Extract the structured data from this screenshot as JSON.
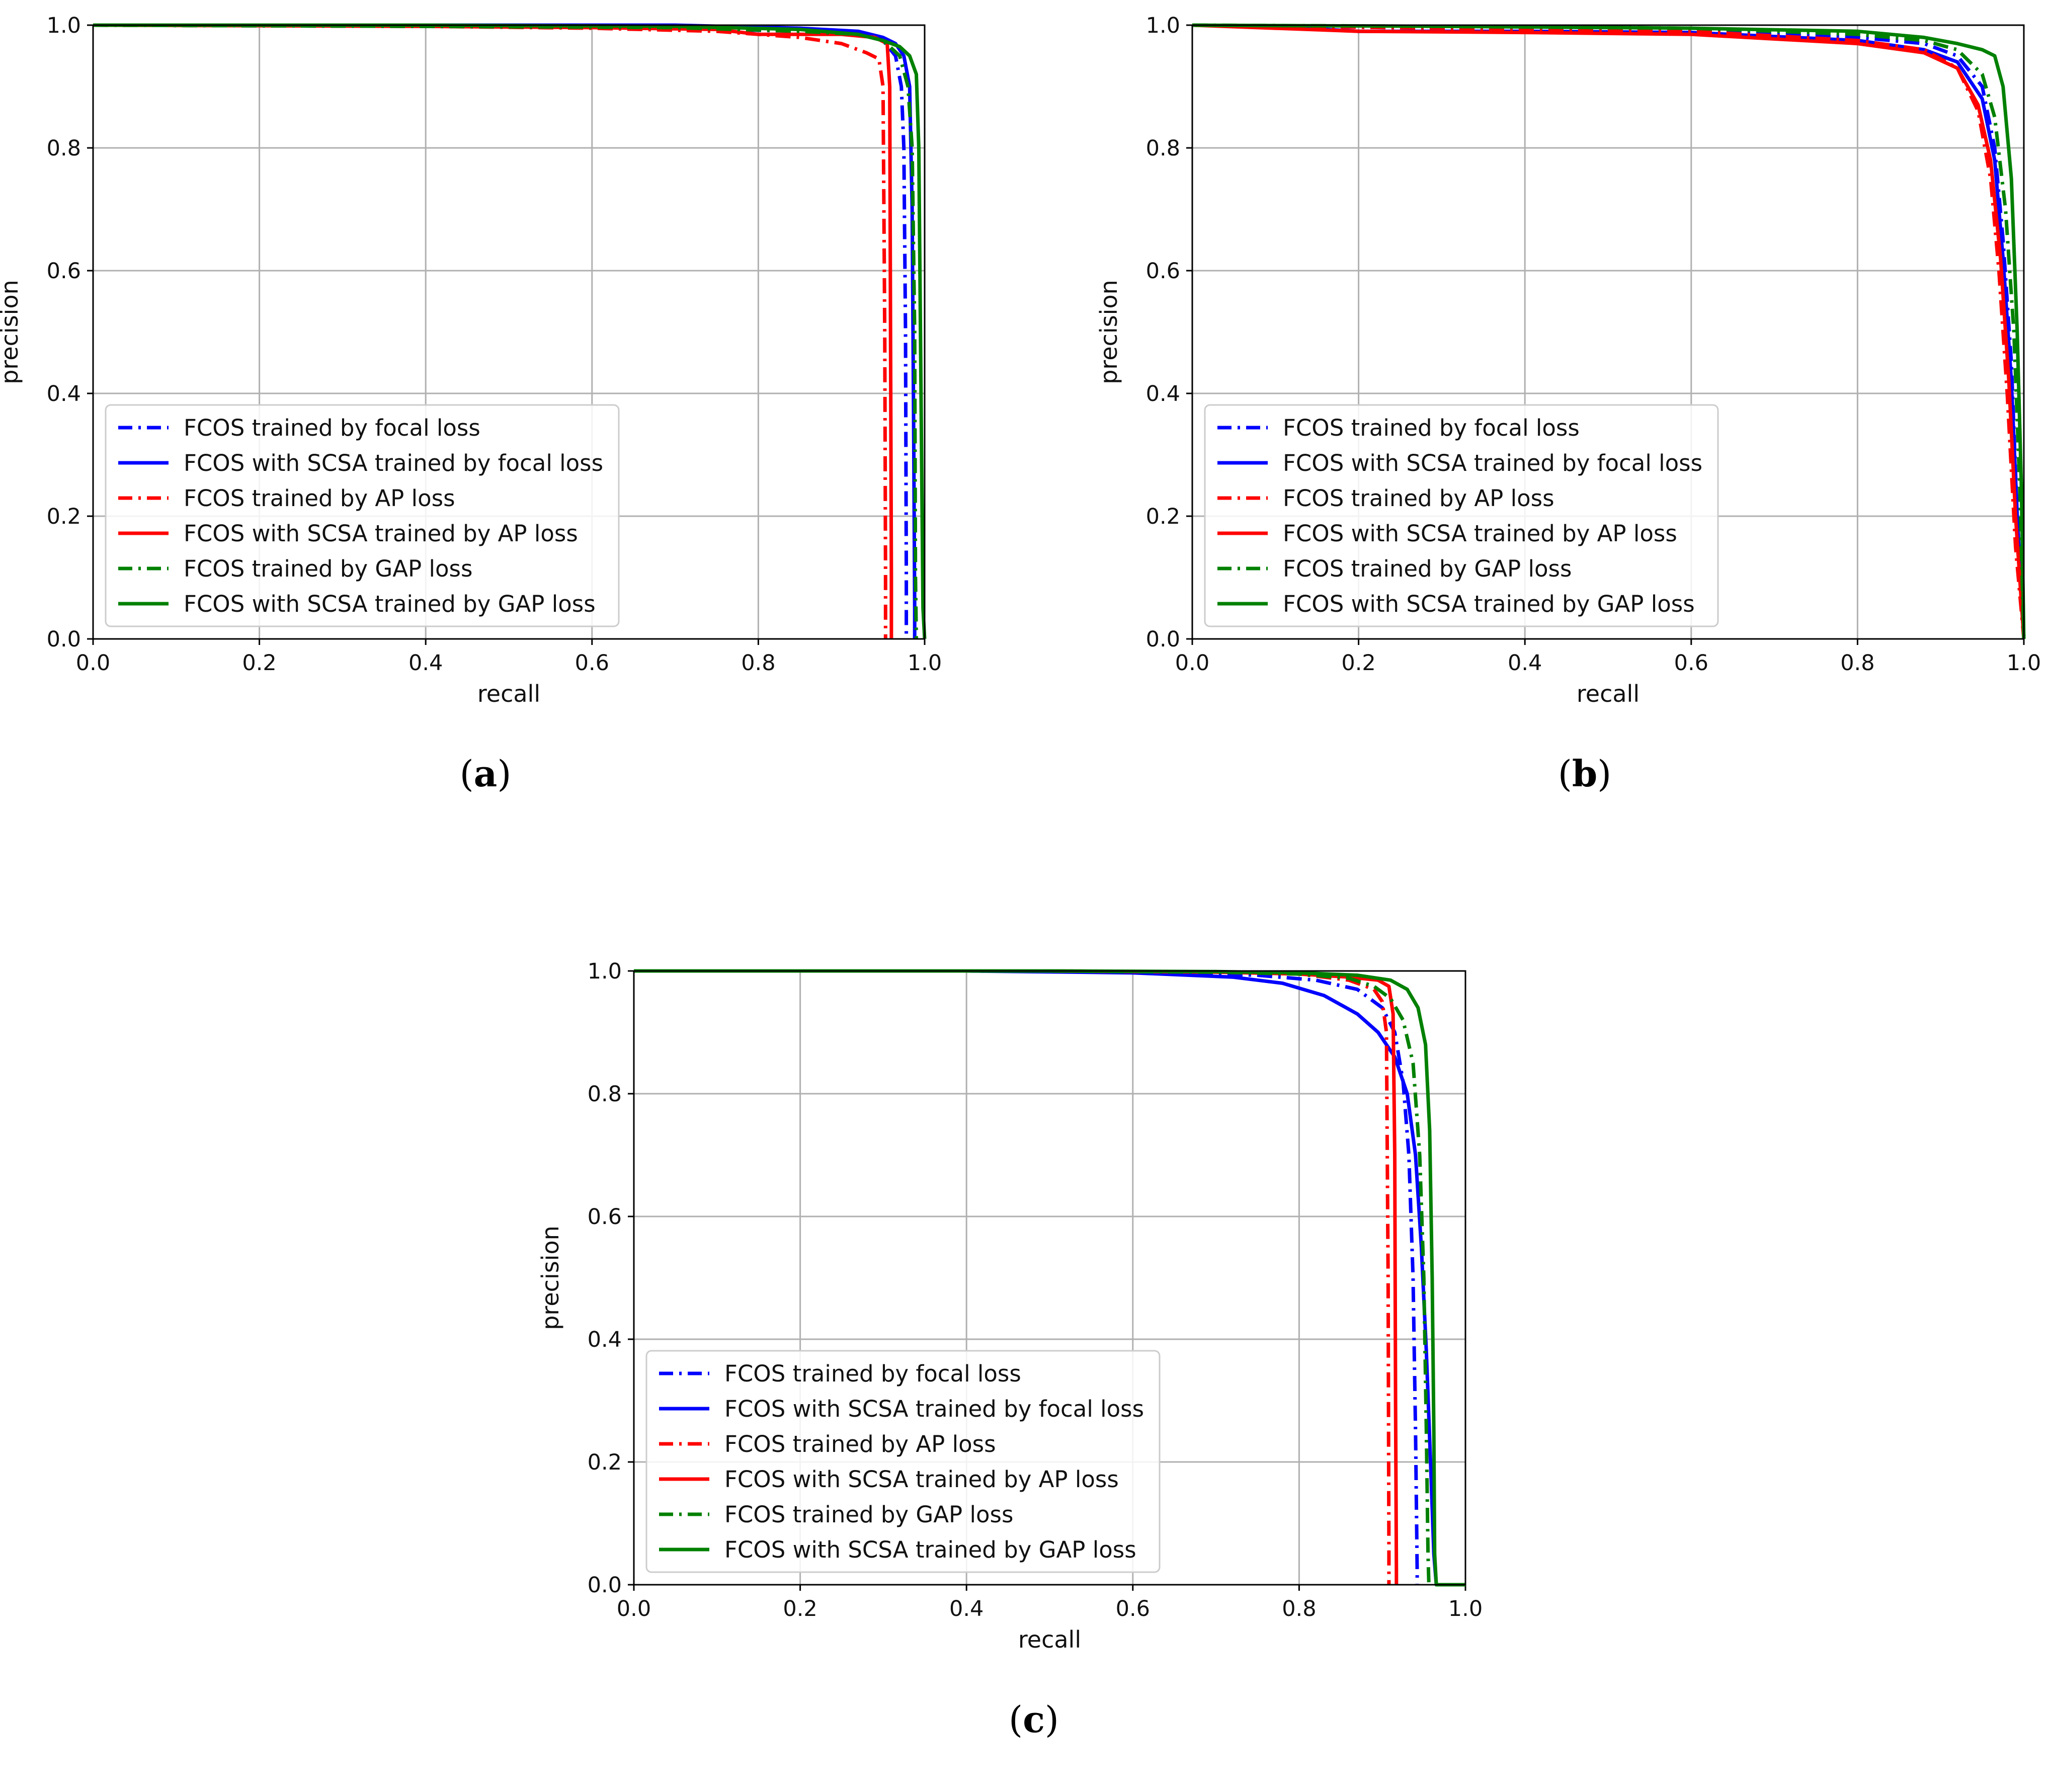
{
  "figure": {
    "captions": [
      {
        "prefix": "(",
        "letter": "a",
        "suffix": ")"
      },
      {
        "prefix": "(",
        "letter": "b",
        "suffix": ")"
      },
      {
        "prefix": "(",
        "letter": "c",
        "suffix": ")"
      }
    ]
  },
  "colors": {
    "blue": "#0000ff",
    "red": "#ff0000",
    "green": "#008000",
    "grid": "#b0b0b0",
    "axis": "#000000"
  },
  "chart_data": [
    {
      "type": "line",
      "panel": "a",
      "title": "",
      "xlabel": "recall",
      "ylabel": "precision",
      "xlim": [
        0.0,
        1.0
      ],
      "ylim": [
        0.0,
        1.0
      ],
      "xticks": [
        "0.0",
        "0.2",
        "0.4",
        "0.6",
        "0.8",
        "1.0"
      ],
      "yticks": [
        "0.0",
        "0.2",
        "0.4",
        "0.6",
        "0.8",
        "1.0"
      ],
      "grid": true,
      "legend_position": "lower-left",
      "series": [
        {
          "name": "FCOS trained by focal loss",
          "color": "#0000ff",
          "style": "dashdot",
          "x": [
            0.0,
            0.4,
            0.7,
            0.85,
            0.92,
            0.95,
            0.965,
            0.972,
            0.975,
            0.977,
            0.978,
            0.978
          ],
          "y": [
            1.0,
            0.998,
            0.995,
            0.99,
            0.985,
            0.975,
            0.95,
            0.9,
            0.8,
            0.5,
            0.1,
            0.0
          ]
        },
        {
          "name": "FCOS with SCSA trained by focal loss",
          "color": "#0000ff",
          "style": "solid",
          "x": [
            0.0,
            0.4,
            0.7,
            0.85,
            0.92,
            0.95,
            0.965,
            0.975,
            0.982,
            0.985,
            0.987,
            0.988,
            0.988
          ],
          "y": [
            1.0,
            1.0,
            1.0,
            0.995,
            0.99,
            0.98,
            0.97,
            0.95,
            0.9,
            0.7,
            0.3,
            0.05,
            0.0
          ]
        },
        {
          "name": "FCOS trained by AP loss",
          "color": "#ff0000",
          "style": "dashdot",
          "x": [
            0.0,
            0.4,
            0.6,
            0.75,
            0.85,
            0.9,
            0.93,
            0.945,
            0.95,
            0.952,
            0.953,
            0.953
          ],
          "y": [
            1.0,
            0.998,
            0.995,
            0.99,
            0.98,
            0.97,
            0.955,
            0.945,
            0.9,
            0.5,
            0.1,
            0.0
          ]
        },
        {
          "name": "FCOS with SCSA trained by AP loss",
          "color": "#ff0000",
          "style": "solid",
          "x": [
            0.0,
            0.4,
            0.6,
            0.75,
            0.8,
            0.85,
            0.9,
            0.94,
            0.955,
            0.958,
            0.959,
            0.96,
            0.96
          ],
          "y": [
            1.0,
            0.998,
            0.996,
            0.993,
            0.985,
            0.985,
            0.985,
            0.98,
            0.97,
            0.9,
            0.5,
            0.1,
            0.0
          ]
        },
        {
          "name": "FCOS trained by GAP loss",
          "color": "#008000",
          "style": "dashdot",
          "x": [
            0.0,
            0.4,
            0.7,
            0.85,
            0.92,
            0.95,
            0.97,
            0.98,
            0.985,
            0.988,
            0.989,
            0.99
          ],
          "y": [
            1.0,
            0.998,
            0.996,
            0.99,
            0.985,
            0.975,
            0.95,
            0.9,
            0.8,
            0.5,
            0.1,
            0.0
          ]
        },
        {
          "name": "FCOS with SCSA trained by GAP loss",
          "color": "#008000",
          "style": "solid",
          "x": [
            0.0,
            0.4,
            0.7,
            0.85,
            0.92,
            0.95,
            0.97,
            0.982,
            0.99,
            0.993,
            0.995,
            0.997,
            0.998,
            1.0
          ],
          "y": [
            1.0,
            1.0,
            0.998,
            0.993,
            0.985,
            0.975,
            0.965,
            0.95,
            0.92,
            0.8,
            0.5,
            0.2,
            0.05,
            0.0
          ]
        }
      ]
    },
    {
      "type": "line",
      "panel": "b",
      "title": "",
      "xlabel": "recall",
      "ylabel": "precision",
      "xlim": [
        0.0,
        1.0
      ],
      "ylim": [
        0.0,
        1.0
      ],
      "xticks": [
        "0.0",
        "0.2",
        "0.4",
        "0.6",
        "0.8",
        "1.0"
      ],
      "yticks": [
        "0.0",
        "0.2",
        "0.4",
        "0.6",
        "0.8",
        "1.0"
      ],
      "grid": true,
      "legend_position": "lower-left",
      "series": [
        {
          "name": "FCOS trained by focal loss",
          "color": "#0000ff",
          "style": "dashdot",
          "x": [
            0.0,
            0.3,
            0.6,
            0.8,
            0.88,
            0.92,
            0.95,
            0.965,
            0.975,
            0.985,
            0.992,
            1.0
          ],
          "y": [
            1.0,
            0.995,
            0.99,
            0.98,
            0.97,
            0.95,
            0.9,
            0.8,
            0.65,
            0.45,
            0.2,
            0.0
          ]
        },
        {
          "name": "FCOS with SCSA trained by focal loss",
          "color": "#0000ff",
          "style": "solid",
          "x": [
            0.0,
            0.1,
            0.2,
            0.4,
            0.6,
            0.8,
            0.88,
            0.92,
            0.95,
            0.965,
            0.975,
            0.985,
            0.992,
            1.0
          ],
          "y": [
            1.0,
            0.998,
            0.99,
            0.99,
            0.988,
            0.975,
            0.96,
            0.94,
            0.88,
            0.78,
            0.62,
            0.42,
            0.2,
            0.0
          ]
        },
        {
          "name": "FCOS trained by AP loss",
          "color": "#ff0000",
          "style": "dashdot",
          "x": [
            0.0,
            0.3,
            0.6,
            0.8,
            0.88,
            0.92,
            0.945,
            0.96,
            0.97,
            0.98,
            0.99,
            1.0
          ],
          "y": [
            1.0,
            0.995,
            0.99,
            0.975,
            0.96,
            0.93,
            0.86,
            0.75,
            0.6,
            0.4,
            0.15,
            0.0
          ]
        },
        {
          "name": "FCOS with SCSA trained by AP loss",
          "color": "#ff0000",
          "style": "solid",
          "x": [
            0.0,
            0.2,
            0.4,
            0.6,
            0.8,
            0.88,
            0.92,
            0.945,
            0.96,
            0.972,
            0.982,
            0.99,
            1.0
          ],
          "y": [
            1.0,
            0.99,
            0.988,
            0.985,
            0.97,
            0.955,
            0.93,
            0.87,
            0.78,
            0.62,
            0.42,
            0.2,
            0.0
          ]
        },
        {
          "name": "FCOS trained by GAP loss",
          "color": "#008000",
          "style": "dashdot",
          "x": [
            0.0,
            0.3,
            0.6,
            0.8,
            0.88,
            0.92,
            0.95,
            0.965,
            0.978,
            0.988,
            0.995,
            1.0
          ],
          "y": [
            1.0,
            0.998,
            0.995,
            0.985,
            0.975,
            0.96,
            0.92,
            0.85,
            0.7,
            0.5,
            0.25,
            0.0
          ]
        },
        {
          "name": "FCOS with SCSA trained by GAP loss",
          "color": "#008000",
          "style": "solid",
          "x": [
            0.0,
            0.3,
            0.6,
            0.8,
            0.88,
            0.92,
            0.95,
            0.965,
            0.975,
            0.985,
            0.992,
            0.997,
            1.0
          ],
          "y": [
            1.0,
            0.998,
            0.995,
            0.99,
            0.98,
            0.97,
            0.96,
            0.95,
            0.9,
            0.75,
            0.5,
            0.25,
            0.0
          ]
        }
      ]
    },
    {
      "type": "line",
      "panel": "c",
      "title": "",
      "xlabel": "recall",
      "ylabel": "precision",
      "xlim": [
        0.0,
        1.0
      ],
      "ylim": [
        0.0,
        1.0
      ],
      "xticks": [
        "0.0",
        "0.2",
        "0.4",
        "0.6",
        "0.8",
        "1.0"
      ],
      "yticks": [
        "0.0",
        "0.2",
        "0.4",
        "0.6",
        "0.8",
        "1.0"
      ],
      "grid": true,
      "legend_position": "lower-left",
      "series": [
        {
          "name": "FCOS trained by focal loss",
          "color": "#0000ff",
          "style": "dashdot",
          "x": [
            0.0,
            0.4,
            0.6,
            0.75,
            0.82,
            0.87,
            0.9,
            0.915,
            0.925,
            0.932,
            0.937,
            0.94,
            0.942,
            0.942
          ],
          "y": [
            1.0,
            1.0,
            0.998,
            0.993,
            0.985,
            0.97,
            0.94,
            0.9,
            0.82,
            0.7,
            0.5,
            0.25,
            0.02,
            0.0
          ]
        },
        {
          "name": "FCOS with SCSA trained by focal loss",
          "color": "#0000ff",
          "style": "solid",
          "x": [
            0.0,
            0.4,
            0.6,
            0.72,
            0.78,
            0.83,
            0.87,
            0.895,
            0.915,
            0.93,
            0.94,
            0.947,
            0.953,
            0.958,
            0.962,
            0.965,
            1.0
          ],
          "y": [
            1.0,
            1.0,
            0.997,
            0.99,
            0.98,
            0.96,
            0.93,
            0.9,
            0.86,
            0.8,
            0.7,
            0.55,
            0.38,
            0.2,
            0.05,
            0.0,
            0.0
          ]
        },
        {
          "name": "FCOS trained by AP loss",
          "color": "#ff0000",
          "style": "dashdot",
          "x": [
            0.0,
            0.5,
            0.7,
            0.8,
            0.86,
            0.89,
            0.9,
            0.905,
            0.907,
            0.908,
            0.908
          ],
          "y": [
            1.0,
            1.0,
            0.998,
            0.995,
            0.985,
            0.97,
            0.95,
            0.9,
            0.5,
            0.05,
            0.0
          ]
        },
        {
          "name": "FCOS with SCSA trained by AP loss",
          "color": "#ff0000",
          "style": "solid",
          "x": [
            0.0,
            0.5,
            0.7,
            0.8,
            0.86,
            0.895,
            0.908,
            0.913,
            0.915,
            0.916,
            0.917,
            0.917
          ],
          "y": [
            1.0,
            1.0,
            0.998,
            0.995,
            0.99,
            0.985,
            0.975,
            0.93,
            0.7,
            0.3,
            0.02,
            0.0
          ]
        },
        {
          "name": "FCOS trained by GAP loss",
          "color": "#008000",
          "style": "dashdot",
          "x": [
            0.0,
            0.5,
            0.7,
            0.8,
            0.86,
            0.89,
            0.91,
            0.925,
            0.937,
            0.945,
            0.95,
            0.953,
            0.955,
            0.956
          ],
          "y": [
            1.0,
            1.0,
            0.998,
            0.995,
            0.988,
            0.975,
            0.955,
            0.92,
            0.85,
            0.7,
            0.5,
            0.25,
            0.05,
            0.0
          ]
        },
        {
          "name": "FCOS with SCSA trained by GAP loss",
          "color": "#008000",
          "style": "solid",
          "x": [
            0.0,
            0.5,
            0.7,
            0.8,
            0.87,
            0.91,
            0.93,
            0.943,
            0.952,
            0.957,
            0.96,
            0.962,
            0.963,
            0.965,
            1.0
          ],
          "y": [
            1.0,
            1.0,
            0.999,
            0.997,
            0.993,
            0.985,
            0.97,
            0.94,
            0.88,
            0.74,
            0.5,
            0.25,
            0.05,
            0.0,
            0.0
          ]
        }
      ]
    }
  ]
}
